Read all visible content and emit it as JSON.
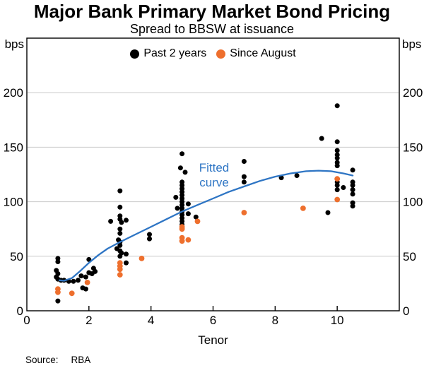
{
  "title": "Major Bank Primary Market Bond Pricing",
  "subtitle": "Spread to BBSW at issuance",
  "axis": {
    "left_unit": "bps",
    "right_unit": "bps",
    "x_label": "Tenor"
  },
  "legend": [
    {
      "label": "Past 2 years",
      "color": "#000000"
    },
    {
      "label": "Since August",
      "color": "#EE6F2D"
    }
  ],
  "annotation": {
    "line1": "Fitted",
    "line2": "curve",
    "color": "#2E75C4"
  },
  "source": {
    "label": "Source:",
    "value": "RBA"
  },
  "colors": {
    "grid": "#C8C8C8",
    "frame": "#000000",
    "accent_blue": "#2E75C4",
    "accent_orange": "#EE6F2D"
  },
  "chart_data": {
    "type": "scatter",
    "title": "Major Bank Primary Market Bond Pricing",
    "subtitle": "Spread to BBSW at issuance",
    "xlabel": "Tenor",
    "ylabel": "bps",
    "xlim": [
      0,
      12
    ],
    "ylim": [
      0,
      250
    ],
    "x_ticks": [
      0,
      2,
      4,
      6,
      8,
      10
    ],
    "y_ticks": [
      0,
      50,
      100,
      150,
      200
    ],
    "grid": true,
    "legend_position": "top-center",
    "series": [
      {
        "name": "Past 2 years",
        "type": "scatter",
        "color": "#000000",
        "points": [
          [
            0.95,
            37
          ],
          [
            1,
            48
          ],
          [
            1,
            45
          ],
          [
            1,
            34
          ],
          [
            0.95,
            31
          ],
          [
            1,
            29
          ],
          [
            1.1,
            28
          ],
          [
            1.2,
            28
          ],
          [
            1.35,
            27
          ],
          [
            1.5,
            27
          ],
          [
            1,
            9
          ],
          [
            1.65,
            28
          ],
          [
            1.75,
            32
          ],
          [
            1.8,
            21
          ],
          [
            1.9,
            31
          ],
          [
            1.9,
            20
          ],
          [
            2,
            47
          ],
          [
            2,
            35
          ],
          [
            2.1,
            34
          ],
          [
            2.15,
            39
          ],
          [
            2.2,
            36
          ],
          [
            2.7,
            82
          ],
          [
            2.9,
            57
          ],
          [
            2.95,
            65
          ],
          [
            3,
            110
          ],
          [
            3,
            95
          ],
          [
            3,
            87
          ],
          [
            3,
            84
          ],
          [
            3.05,
            81
          ],
          [
            3,
            75
          ],
          [
            3,
            71
          ],
          [
            3,
            63
          ],
          [
            3,
            60
          ],
          [
            3,
            55
          ],
          [
            3.05,
            53
          ],
          [
            3,
            50
          ],
          [
            3.2,
            83
          ],
          [
            3.2,
            52
          ],
          [
            3.2,
            44
          ],
          [
            3.95,
            70
          ],
          [
            3.95,
            66
          ],
          [
            4.8,
            104
          ],
          [
            4.85,
            94
          ],
          [
            4.95,
            131
          ],
          [
            5,
            144
          ],
          [
            5.1,
            127
          ],
          [
            5,
            118
          ],
          [
            5,
            115
          ],
          [
            5,
            112
          ],
          [
            5,
            109
          ],
          [
            5,
            106
          ],
          [
            5,
            103
          ],
          [
            5,
            100
          ],
          [
            5,
            97
          ],
          [
            5,
            94
          ],
          [
            5,
            91
          ],
          [
            5,
            88
          ],
          [
            5,
            85
          ],
          [
            5,
            82
          ],
          [
            5,
            79
          ],
          [
            5,
            76
          ],
          [
            5.2,
            98
          ],
          [
            5.2,
            89
          ],
          [
            5.45,
            86
          ],
          [
            7,
            137
          ],
          [
            7,
            123
          ],
          [
            7,
            118
          ],
          [
            8.2,
            122
          ],
          [
            8.7,
            124
          ],
          [
            9.5,
            158
          ],
          [
            9.7,
            90
          ],
          [
            10,
            188
          ],
          [
            10,
            155
          ],
          [
            10,
            147
          ],
          [
            10,
            143
          ],
          [
            10,
            140
          ],
          [
            10,
            136
          ],
          [
            10,
            133
          ],
          [
            10,
            118
          ],
          [
            10,
            115
          ],
          [
            10,
            111
          ],
          [
            10.2,
            113
          ],
          [
            10.5,
            129
          ],
          [
            10.5,
            118
          ],
          [
            10.5,
            115
          ],
          [
            10.5,
            111
          ],
          [
            10.5,
            107
          ],
          [
            10.5,
            99
          ],
          [
            10.5,
            96
          ]
        ]
      },
      {
        "name": "Since August",
        "type": "scatter",
        "color": "#EE6F2D",
        "points": [
          [
            1,
            20
          ],
          [
            1,
            17
          ],
          [
            1.45,
            16
          ],
          [
            1.95,
            26
          ],
          [
            3,
            44
          ],
          [
            3,
            41
          ],
          [
            3,
            38
          ],
          [
            3,
            33
          ],
          [
            3.7,
            48
          ],
          [
            5,
            77
          ],
          [
            5,
            75
          ],
          [
            5,
            67
          ],
          [
            5,
            64
          ],
          [
            5.2,
            65
          ],
          [
            5.5,
            82
          ],
          [
            7,
            90
          ],
          [
            8.9,
            94
          ],
          [
            10,
            121
          ],
          [
            10,
            102
          ]
        ]
      },
      {
        "name": "Fitted curve",
        "type": "line",
        "color": "#2E75C4",
        "points": [
          [
            1.05,
            28
          ],
          [
            1.2,
            27.5
          ],
          [
            1.45,
            30
          ],
          [
            1.7,
            36
          ],
          [
            2,
            44
          ],
          [
            2.3,
            51
          ],
          [
            2.6,
            57
          ],
          [
            3,
            63
          ],
          [
            3.5,
            70
          ],
          [
            4,
            77
          ],
          [
            4.5,
            84
          ],
          [
            5,
            91
          ],
          [
            5.5,
            97
          ],
          [
            6,
            103
          ],
          [
            6.5,
            109
          ],
          [
            7,
            114
          ],
          [
            7.5,
            119
          ],
          [
            8,
            123
          ],
          [
            8.5,
            126
          ],
          [
            9,
            128
          ],
          [
            9.4,
            128.5
          ],
          [
            9.8,
            128
          ],
          [
            10.2,
            126
          ],
          [
            10.5,
            124
          ]
        ]
      }
    ]
  }
}
